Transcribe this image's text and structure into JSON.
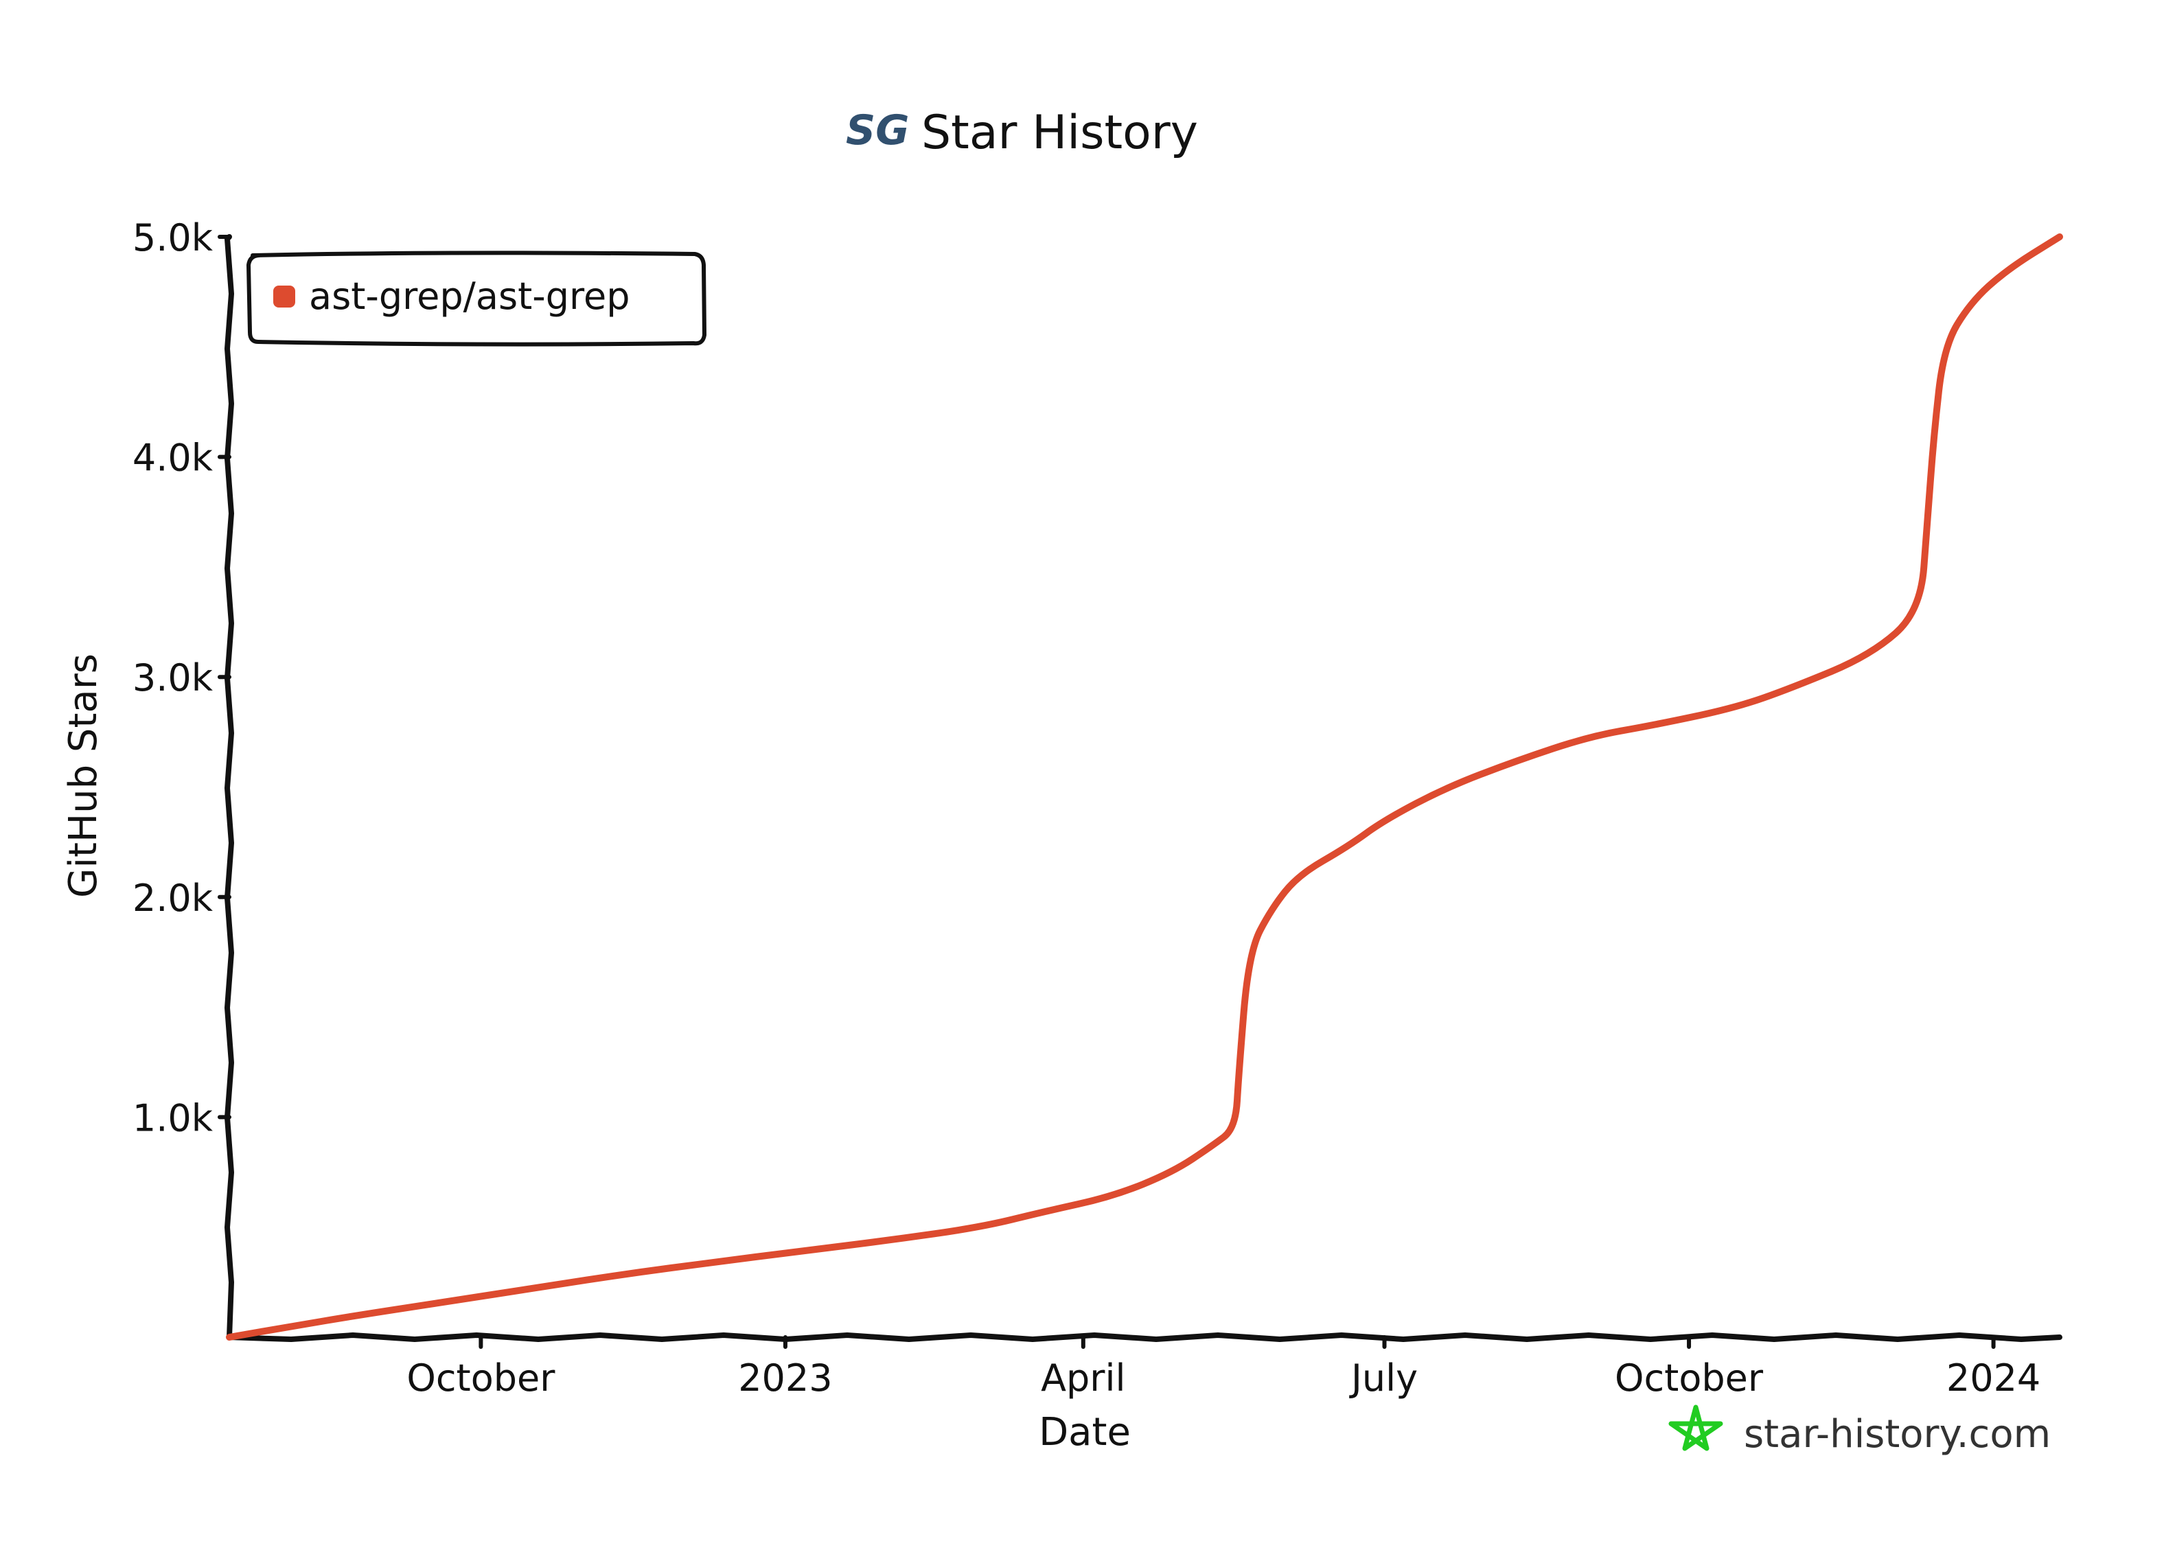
{
  "chart_data": {
    "type": "line",
    "title": "Star History",
    "title_logo": "SG",
    "xlabel": "Date",
    "ylabel": "GitHub Stars",
    "x_ticks": [
      {
        "label": "October",
        "date": "2022-10-01"
      },
      {
        "label": "2023",
        "date": "2023-01-01"
      },
      {
        "label": "April",
        "date": "2023-04-01"
      },
      {
        "label": "July",
        "date": "2023-07-01"
      },
      {
        "label": "October",
        "date": "2023-10-01"
      },
      {
        "label": "2024",
        "date": "2024-01-01"
      }
    ],
    "y_ticks": [
      {
        "label": "1.0k",
        "value": 1000
      },
      {
        "label": "2.0k",
        "value": 2000
      },
      {
        "label": "3.0k",
        "value": 3000
      },
      {
        "label": "4.0k",
        "value": 4000
      },
      {
        "label": "5.0k",
        "value": 5000
      }
    ],
    "xlim": [
      "2022-07-17",
      "2024-01-21"
    ],
    "ylim": [
      0,
      5000
    ],
    "legend_position": "top-left",
    "grid": false,
    "series": [
      {
        "name": "ast-grep/ast-grep",
        "color": "#dd4b2f",
        "points": [
          {
            "date": "2022-07-17",
            "stars": 0
          },
          {
            "date": "2022-08-05",
            "stars": 50
          },
          {
            "date": "2022-08-25",
            "stars": 100
          },
          {
            "date": "2022-09-20",
            "stars": 160
          },
          {
            "date": "2022-10-20",
            "stars": 230
          },
          {
            "date": "2022-11-15",
            "stars": 290
          },
          {
            "date": "2022-12-10",
            "stars": 340
          },
          {
            "date": "2023-01-05",
            "stars": 390
          },
          {
            "date": "2023-02-01",
            "stars": 440
          },
          {
            "date": "2023-03-01",
            "stars": 500
          },
          {
            "date": "2023-03-20",
            "stars": 570
          },
          {
            "date": "2023-04-10",
            "stars": 640
          },
          {
            "date": "2023-04-28",
            "stars": 750
          },
          {
            "date": "2023-05-10",
            "stars": 870
          },
          {
            "date": "2023-05-17",
            "stars": 950
          },
          {
            "date": "2023-05-18",
            "stars": 1200
          },
          {
            "date": "2023-05-21",
            "stars": 1750
          },
          {
            "date": "2023-05-28",
            "stars": 1950
          },
          {
            "date": "2023-06-05",
            "stars": 2100
          },
          {
            "date": "2023-06-20",
            "stars": 2230
          },
          {
            "date": "2023-07-01",
            "stars": 2350
          },
          {
            "date": "2023-07-20",
            "stars": 2500
          },
          {
            "date": "2023-08-10",
            "stars": 2620
          },
          {
            "date": "2023-09-01",
            "stars": 2730
          },
          {
            "date": "2023-09-20",
            "stars": 2780
          },
          {
            "date": "2023-10-15",
            "stars": 2860
          },
          {
            "date": "2023-11-01",
            "stars": 2950
          },
          {
            "date": "2023-11-25",
            "stars": 3100
          },
          {
            "date": "2023-12-10",
            "stars": 3300
          },
          {
            "date": "2023-12-12",
            "stars": 3700
          },
          {
            "date": "2023-12-14",
            "stars": 4100
          },
          {
            "date": "2023-12-17",
            "stars": 4500
          },
          {
            "date": "2023-12-25",
            "stars": 4700
          },
          {
            "date": "2024-01-05",
            "stars": 4850
          },
          {
            "date": "2024-01-21",
            "stars": 5000
          }
        ]
      }
    ]
  },
  "watermark": {
    "text": "star-history.com",
    "icon": "star-icon",
    "icon_color": "#22cc22"
  }
}
